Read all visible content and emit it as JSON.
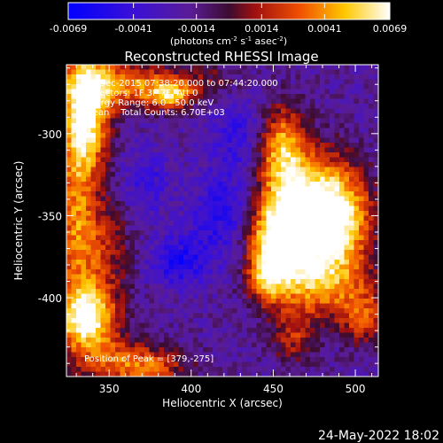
{
  "chart_data": {
    "type": "heatmap",
    "title": "Reconstructed RHESSI Image",
    "xlabel": "Heliocentric X (arcsec)",
    "ylabel": "Heliocentric Y (arcsec)",
    "xlim": [
      324,
      514
    ],
    "ylim": [
      -448,
      -258
    ],
    "x_ticks": [
      350,
      400,
      450,
      500
    ],
    "y_ticks": [
      -300,
      -350,
      -400
    ],
    "colorbar": {
      "range": [
        -0.0069,
        0.0069
      ],
      "ticks": [
        "-0.0069",
        "-0.0041",
        "-0.0014",
        "0.0014",
        "0.0041",
        "0.0069"
      ],
      "ticks_values": [
        -0.0069,
        -0.0041,
        -0.0014,
        0.0014,
        0.0041,
        0.0069
      ],
      "label_parts": {
        "open": "(photons cm",
        "exp1": "-2",
        "mid": " s",
        "exp2": "-1",
        "mid2": " asec",
        "exp3": "-2",
        "close": ")"
      },
      "colormap": "blue-purple-red-yellow-white"
    },
    "annotations": {
      "time_range": "29-Dec-2015 07:38:20.000 to 07:44:20.000",
      "detectors": "Detectors: 1F 3F 7F, Att 0",
      "energy": "Energy Range: 6.0 - 50.0 keV",
      "counts": "Clean    Total Counts: 6.70E+03",
      "peak": "Position of Peak = [379,-275]"
    },
    "grid": "off",
    "blobs": [
      {
        "x": 336,
        "y": -288,
        "amp": 1.25,
        "sx": 10,
        "sy": 26
      },
      {
        "x": 358,
        "y": -270,
        "amp": 0.8,
        "sx": 22,
        "sy": 10
      },
      {
        "x": 387,
        "y": -276,
        "amp": 0.85,
        "sx": 10,
        "sy": 6
      },
      {
        "x": 410,
        "y": -268,
        "amp": 0.3,
        "sx": 16,
        "sy": 8
      },
      {
        "x": 329,
        "y": -340,
        "amp": 0.55,
        "sx": 8,
        "sy": 40
      },
      {
        "x": 342,
        "y": -368,
        "amp": 0.55,
        "sx": 14,
        "sy": 22
      },
      {
        "x": 336,
        "y": -412,
        "amp": 1.3,
        "sx": 13,
        "sy": 15
      },
      {
        "x": 356,
        "y": -440,
        "amp": 0.6,
        "sx": 18,
        "sy": 10
      },
      {
        "x": 380,
        "y": -442,
        "amp": 0.45,
        "sx": 16,
        "sy": 8
      },
      {
        "x": 468,
        "y": -348,
        "amp": 1.35,
        "sx": 18,
        "sy": 24
      },
      {
        "x": 452,
        "y": -368,
        "amp": 1.05,
        "sx": 12,
        "sy": 16
      },
      {
        "x": 492,
        "y": -352,
        "amp": 0.9,
        "sx": 14,
        "sy": 22
      },
      {
        "x": 455,
        "y": -308,
        "amp": 0.85,
        "sx": 10,
        "sy": 18
      },
      {
        "x": 478,
        "y": -392,
        "amp": 0.75,
        "sx": 20,
        "sy": 14
      },
      {
        "x": 505,
        "y": -412,
        "amp": 0.6,
        "sx": 10,
        "sy": 12
      },
      {
        "x": 462,
        "y": -424,
        "amp": 0.5,
        "sx": 10,
        "sy": 12
      },
      {
        "x": 445,
        "y": -390,
        "amp": 0.55,
        "sx": 8,
        "sy": 10
      },
      {
        "x": 420,
        "y": -350,
        "amp": -0.45,
        "sx": 14,
        "sy": 20
      },
      {
        "x": 392,
        "y": -378,
        "amp": -0.55,
        "sx": 12,
        "sy": 10
      },
      {
        "x": 430,
        "y": -300,
        "amp": -0.35,
        "sx": 12,
        "sy": 18
      },
      {
        "x": 372,
        "y": -330,
        "amp": -0.35,
        "sx": 10,
        "sy": 14
      }
    ],
    "background": -0.08,
    "noise": 0.16
  },
  "footer": {
    "date": "24-May-2022 18:02"
  }
}
